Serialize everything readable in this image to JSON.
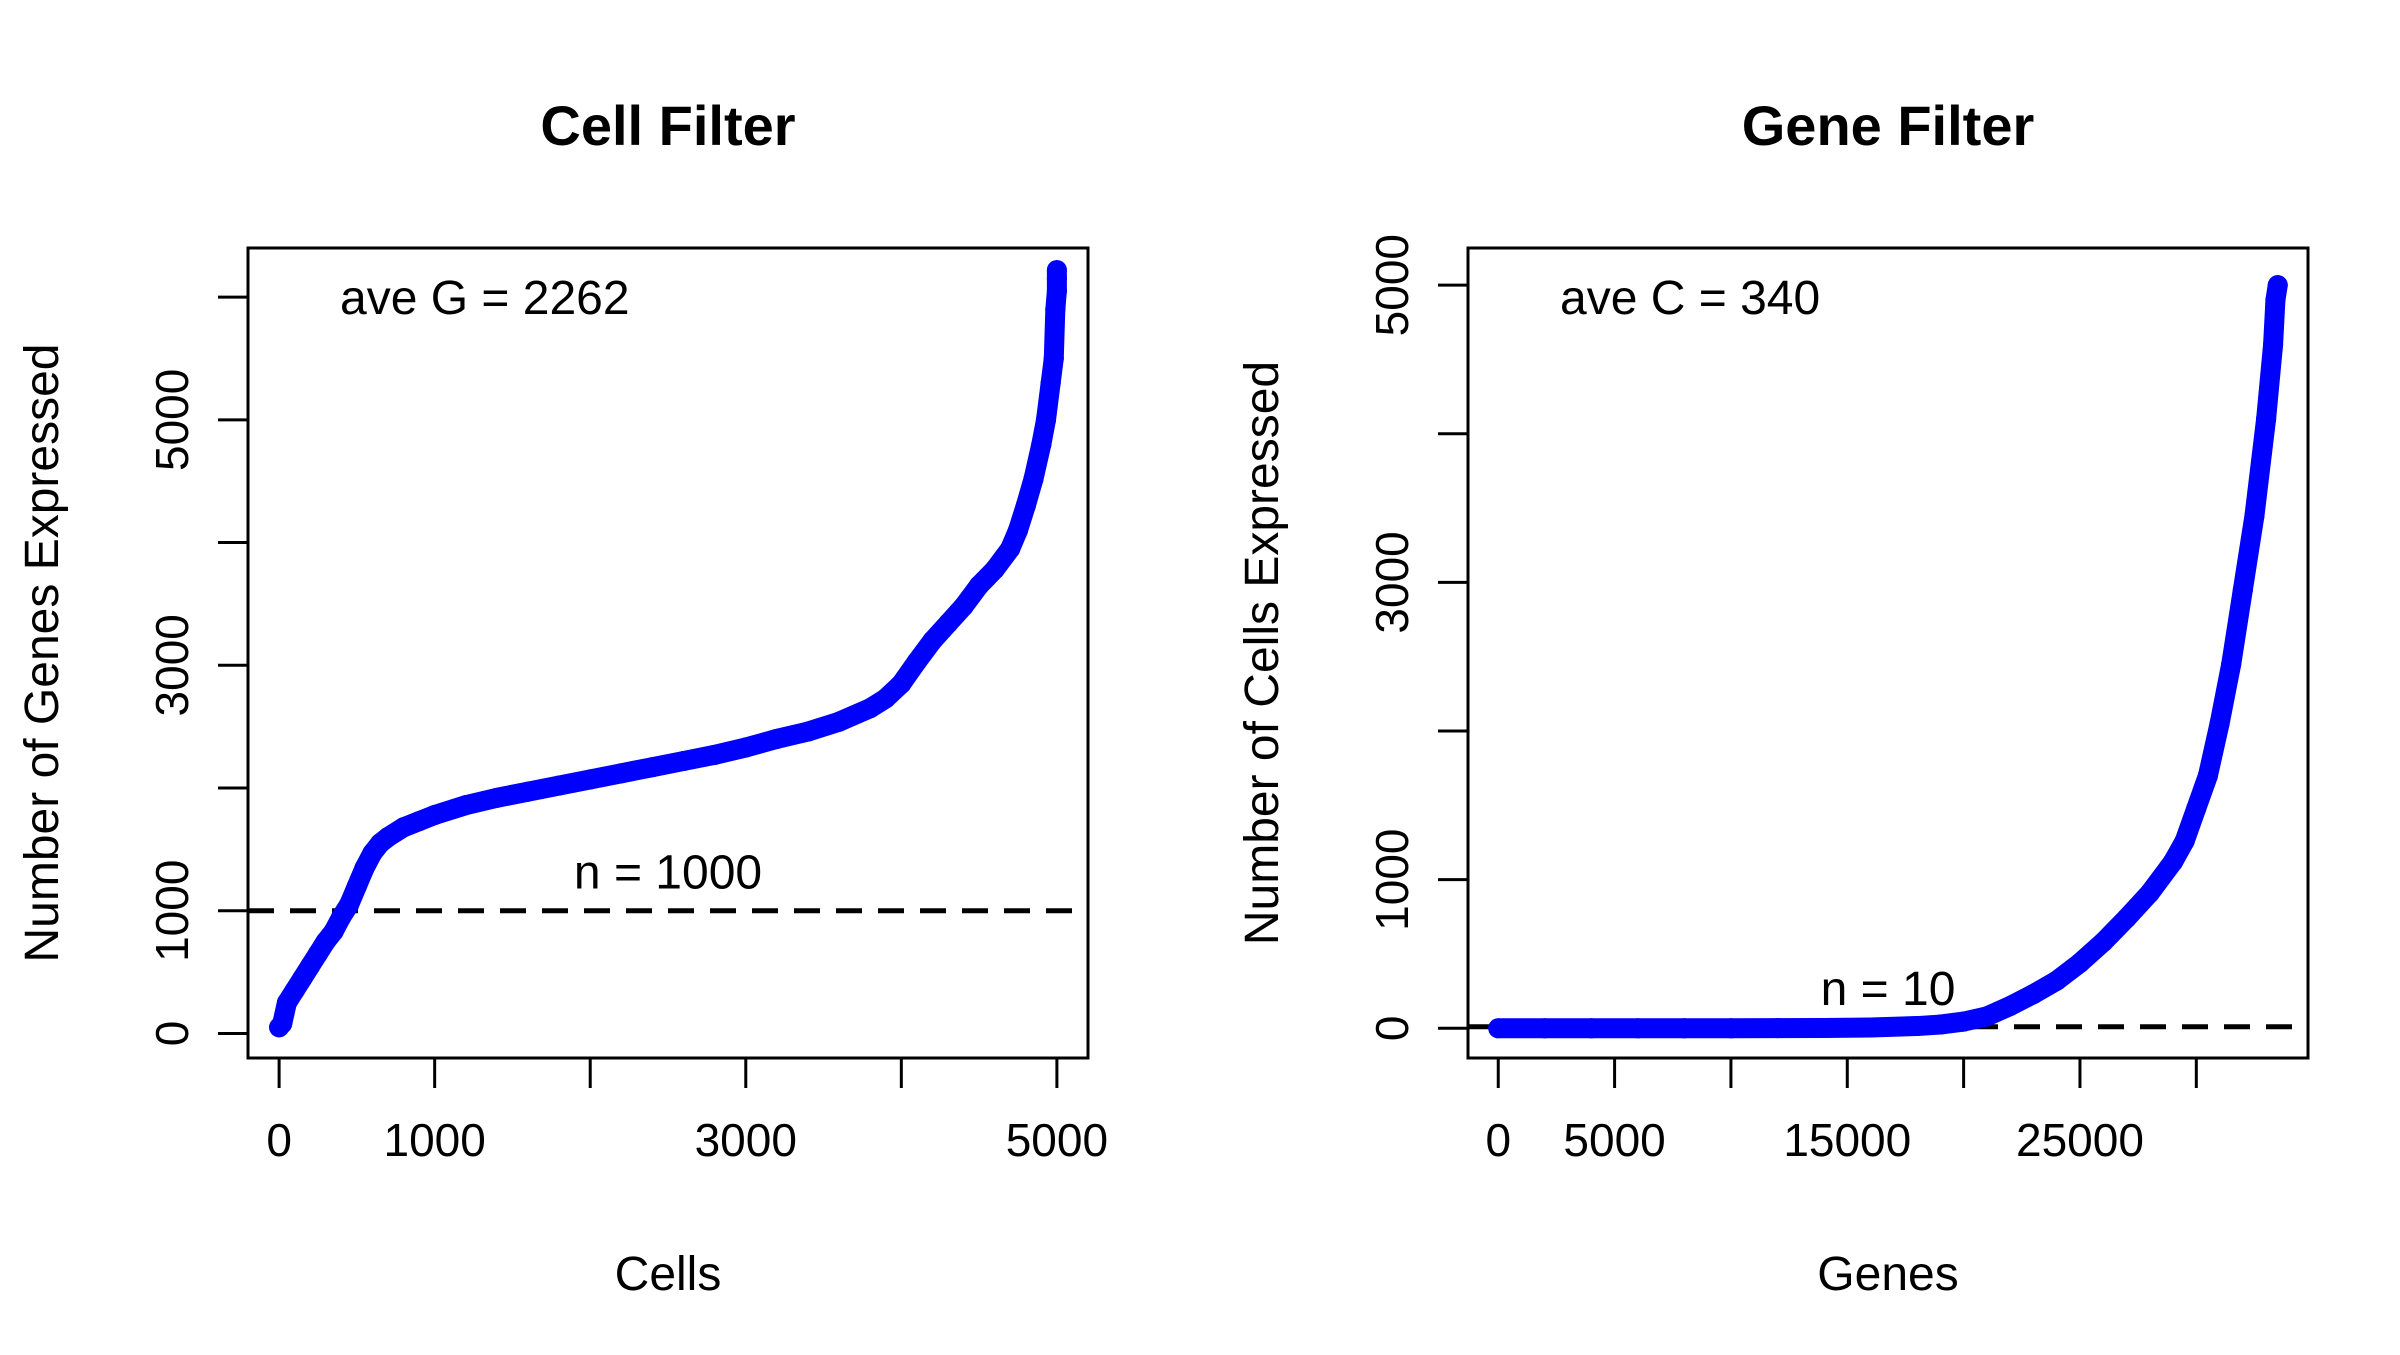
{
  "chart_data": [
    {
      "type": "scatter",
      "title": "Cell Filter",
      "xlabel": "Cells",
      "ylabel": "Number of Genes Expressed",
      "xlim": [
        -200,
        5200
      ],
      "ylim": [
        -200,
        6400
      ],
      "xticks": [
        0,
        1000,
        2000,
        3000,
        4000,
        5000
      ],
      "xtick_labels": [
        "0",
        "1000",
        "",
        "3000",
        "",
        "5000"
      ],
      "yticks": [
        0,
        1000,
        2000,
        3000,
        4000,
        5000,
        6000
      ],
      "ytick_labels": [
        "0",
        "1000",
        "",
        "3000",
        "",
        "5000",
        ""
      ],
      "color": "#0000ff",
      "hline": {
        "y": 1000,
        "style": "dashed",
        "label": "n = 1000"
      },
      "annotation": "ave G = 2262",
      "grid": false,
      "series": [
        {
          "x": [
            0,
            20,
            50,
            100,
            150,
            200,
            250,
            300,
            350,
            400,
            450,
            500,
            550,
            600,
            650,
            700,
            800,
            900,
            1000,
            1200,
            1400,
            1600,
            1800,
            2000,
            2200,
            2400,
            2600,
            2800,
            3000,
            3200,
            3400,
            3600,
            3800,
            3900,
            4000,
            4100,
            4200,
            4300,
            4400,
            4500,
            4600,
            4700,
            4750,
            4800,
            4850,
            4900,
            4930,
            4960,
            4980,
            4990,
            5000,
            5000,
            5000
          ],
          "y": [
            50,
            80,
            250,
            350,
            450,
            550,
            650,
            750,
            830,
            950,
            1050,
            1200,
            1350,
            1470,
            1550,
            1600,
            1680,
            1730,
            1780,
            1860,
            1920,
            1970,
            2020,
            2070,
            2120,
            2170,
            2220,
            2270,
            2330,
            2400,
            2460,
            2540,
            2650,
            2730,
            2850,
            3030,
            3200,
            3340,
            3480,
            3650,
            3780,
            3950,
            4100,
            4300,
            4520,
            4800,
            5000,
            5300,
            5500,
            5900,
            6050,
            6150,
            6220
          ]
        }
      ]
    },
    {
      "type": "scatter",
      "title": "Gene Filter",
      "xlabel": "Genes",
      "ylabel": "Number of Cells Expressed",
      "xlim": [
        -1300,
        34800
      ],
      "ylim": [
        -200,
        5250
      ],
      "xticks": [
        0,
        5000,
        10000,
        15000,
        20000,
        25000,
        30000
      ],
      "xtick_labels": [
        "0",
        "5000",
        "",
        "15000",
        "",
        "25000",
        ""
      ],
      "yticks": [
        0,
        1000,
        2000,
        3000,
        4000,
        5000
      ],
      "ytick_labels": [
        "0",
        "1000",
        "",
        "3000",
        "",
        "5000"
      ],
      "color": "#0000ff",
      "hline": {
        "y": 10,
        "style": "dashed",
        "label": "n = 10"
      },
      "annotation": "ave C = 340",
      "grid": false,
      "series": [
        {
          "x": [
            0,
            2000,
            4000,
            6000,
            8000,
            10000,
            12000,
            14000,
            16000,
            18000,
            19000,
            20000,
            21000,
            22000,
            23000,
            24000,
            25000,
            26000,
            27000,
            28000,
            29000,
            29500,
            30000,
            30500,
            31000,
            31500,
            32000,
            32500,
            33000,
            33300,
            33400,
            33500
          ],
          "y": [
            0,
            0,
            0,
            0,
            0,
            0,
            1,
            2,
            5,
            15,
            25,
            45,
            80,
            150,
            230,
            320,
            440,
            580,
            740,
            910,
            1120,
            1260,
            1480,
            1700,
            2050,
            2450,
            2950,
            3450,
            4100,
            4600,
            4900,
            5000
          ]
        }
      ]
    }
  ]
}
